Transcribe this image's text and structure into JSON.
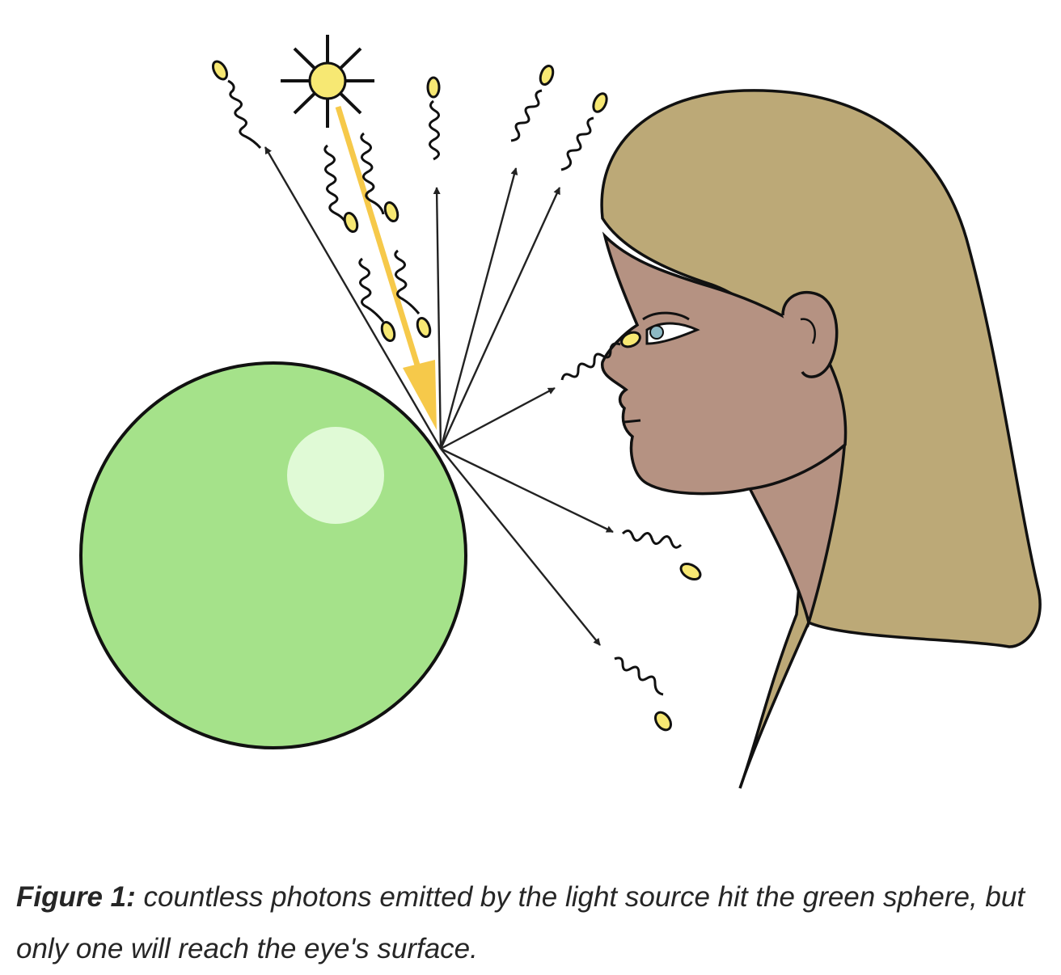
{
  "figure": {
    "colors": {
      "sphere": "#a5e28a",
      "sphere_highlight": "#e0fad6",
      "sun": "#f7e873",
      "incoming_ray": "#f6c94a",
      "photon": "#f7e873",
      "hair": "#bca977",
      "skin": "#b59282",
      "iris": "#8db9c4",
      "outline": "#111111"
    },
    "icons": [
      "sun-icon",
      "photon-icon",
      "eye-icon"
    ]
  },
  "caption": {
    "label": "Figure 1:",
    "text": " countless photons emitted by the light source hit the green sphere, but only one will reach the eye's surface."
  }
}
